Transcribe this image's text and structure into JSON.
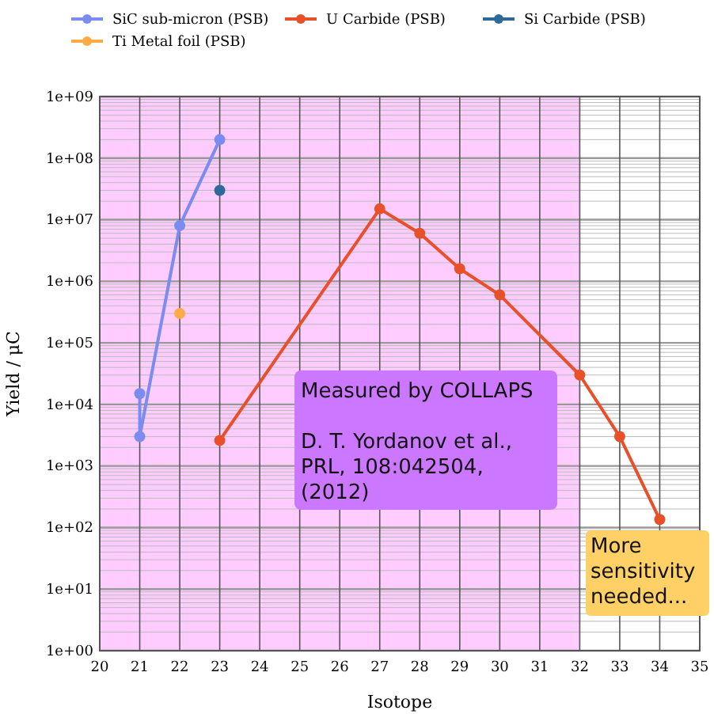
{
  "chart_data": {
    "type": "line",
    "xlabel": "Isotope",
    "ylabel": "Yield / μC",
    "log": "y",
    "grid": true,
    "marker": "circle",
    "line_style": "solid",
    "legend": "top",
    "xlim": [
      20,
      35
    ],
    "xticks": [
      20,
      21,
      22,
      23,
      24,
      25,
      26,
      27,
      28,
      29,
      30,
      31,
      32,
      33,
      34,
      35
    ],
    "ylim": [
      1,
      1000000000
    ],
    "yticks": [
      {
        "value": 1,
        "label": "1e+00"
      },
      {
        "value": 10,
        "label": "1e+01"
      },
      {
        "value": 100,
        "label": "1e+02"
      },
      {
        "value": 1000,
        "label": "1e+03"
      },
      {
        "value": 10000,
        "label": "1e+04"
      },
      {
        "value": 100000,
        "label": "1e+05"
      },
      {
        "value": 1000000,
        "label": "1e+06"
      },
      {
        "value": 10000000,
        "label": "1e+07"
      },
      {
        "value": 100000000,
        "label": "1e+08"
      },
      {
        "value": 1000000000,
        "label": "1e+09"
      }
    ],
    "series": [
      {
        "name": "SiC sub-micron (PSB)",
        "color": "#7b8cf0",
        "x": [
          21,
          21,
          22,
          23
        ],
        "values": [
          15000,
          3000,
          8000000,
          200000000
        ]
      },
      {
        "name": "U Carbide (PSB)",
        "color": "#e8502a",
        "x": [
          23,
          27,
          28,
          29,
          30,
          32,
          33,
          34
        ],
        "values": [
          2600,
          15000000,
          6000000,
          1600000,
          600000,
          30000,
          3000,
          135
        ]
      },
      {
        "name": "Si Carbide (PSB)",
        "color": "#2e6a99",
        "type": "scatter",
        "x": [
          23
        ],
        "values": [
          30000000
        ]
      },
      {
        "name": "Ti Metal foil (PSB)",
        "color": "#ffaa44",
        "type": "scatter",
        "x": [
          22
        ],
        "values": [
          300000
        ]
      }
    ],
    "bands": [
      {
        "axis": "x",
        "from": 20,
        "to": 32,
        "color": "#ffccff"
      }
    ],
    "annotations": [
      "Measured by COLLAPS\n\nD. T. Yordanov et al., PRL, 108:042504, (2012)",
      "More sensitivity needed..."
    ]
  }
}
